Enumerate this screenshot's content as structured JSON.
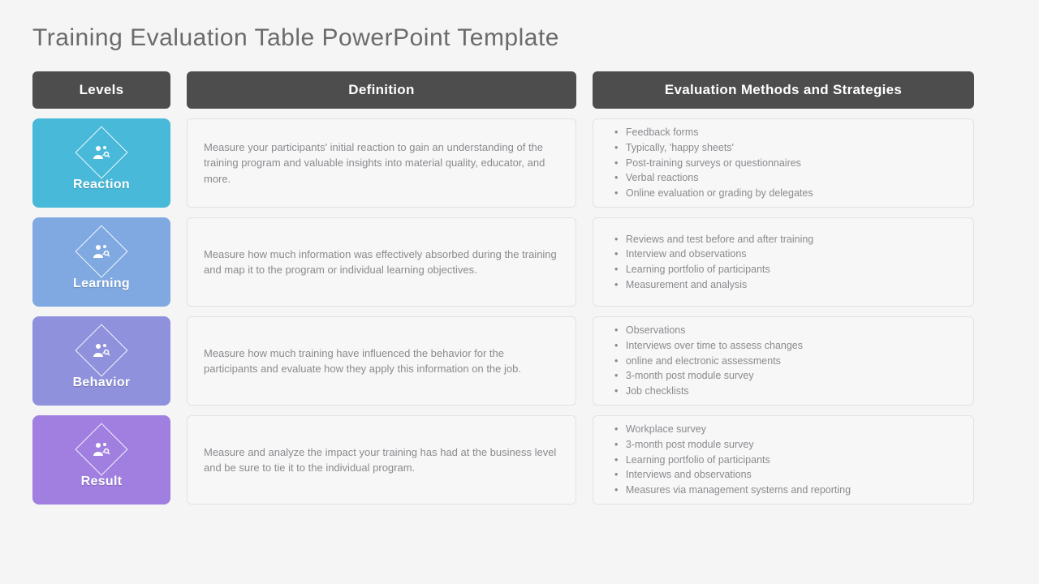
{
  "title": "Training Evaluation Table PowerPoint Template",
  "headers": {
    "levels": "Levels",
    "definition": "Definition",
    "methods": "Evaluation Methods and Strategies"
  },
  "colors": {
    "header_bg": "#4d4d4d",
    "header_text": "#ffffff",
    "page_bg": "#f5f5f6",
    "cell_bg": "#f7f7f8",
    "cell_border": "#e2e2e4",
    "body_text": "#8b8b8e",
    "title_text": "#6b6b6b"
  },
  "rows": [
    {
      "label": "Reaction",
      "color": "#49b9d9",
      "definition": "Measure your participants' initial reaction to gain an understanding of the training program and valuable insights into material quality, educator, and more.",
      "methods": [
        "Feedback forms",
        "Typically, 'happy sheets'",
        "Post-training surveys or questionnaires",
        "Verbal reactions",
        "Online evaluation or grading by delegates"
      ]
    },
    {
      "label": "Learning",
      "color": "#7fa9e0",
      "definition": "Measure how much information was effectively absorbed during the training and map it to the program or individual learning objectives.",
      "methods": [
        "Reviews and test before and after training",
        "Interview and observations",
        "Learning portfolio of participants",
        "Measurement and analysis"
      ]
    },
    {
      "label": "Behavior",
      "color": "#8f91dc",
      "definition": "Measure how much training have influenced the behavior for the participants and evaluate how they apply this information on the job.",
      "methods": [
        "Observations",
        "Interviews over time to assess changes",
        "online and electronic assessments",
        "3-month post module survey",
        "Job checklists"
      ]
    },
    {
      "label": "Result",
      "color": "#a07fe0",
      "definition": "Measure and analyze the impact your training has had at the business level and be sure to tie it to the individual program.",
      "methods": [
        "Workplace survey",
        "3-month post module survey",
        "Learning portfolio of participants",
        "Interviews and observations",
        "Measures via management systems and reporting"
      ]
    }
  ]
}
